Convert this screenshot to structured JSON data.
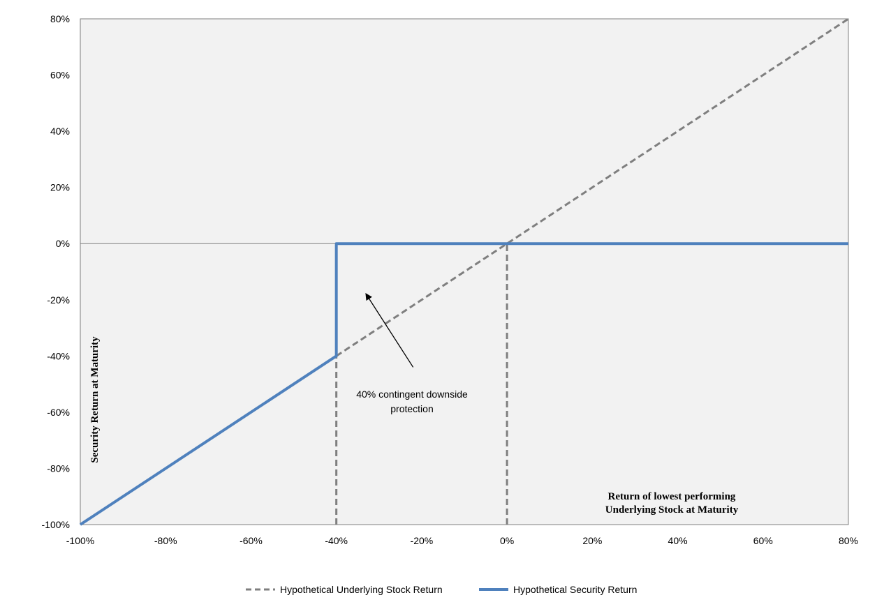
{
  "chart_data": {
    "type": "line",
    "x_ticks": [
      "-100%",
      "-80%",
      "-60%",
      "-40%",
      "-20%",
      "0%",
      "20%",
      "40%",
      "60%",
      "80%"
    ],
    "y_ticks": [
      "-100%",
      "-80%",
      "-60%",
      "-40%",
      "-20%",
      "0%",
      "20%",
      "40%",
      "60%",
      "80%"
    ],
    "xlim": [
      -100,
      80
    ],
    "ylim": [
      -100,
      80
    ],
    "xlabel": [
      "Return of lowest performing",
      "Underlying Stock at Maturity"
    ],
    "ylabel": "Security Return at Maturity",
    "grid": false,
    "legend_position": "bottom",
    "series": [
      {
        "name": "Hypothetical Underlying Stock Return",
        "style": "dashed",
        "color": "#7f7f7f",
        "points": [
          [
            -40,
            -40
          ],
          [
            80,
            80
          ]
        ]
      },
      {
        "name": "Hypothetical Security Return",
        "style": "solid",
        "color": "#4f81bd",
        "points": [
          [
            -100,
            -100
          ],
          [
            -40,
            -40
          ],
          [
            -40,
            0
          ],
          [
            80,
            0
          ]
        ]
      }
    ],
    "reference_lines": [
      {
        "x": -40,
        "y_from": -100,
        "y_to": -40,
        "style": "dashed",
        "color": "#7f7f7f"
      },
      {
        "x": 0,
        "y_from": -100,
        "y_to": 0,
        "style": "dashed",
        "color": "#7f7f7f"
      }
    ],
    "annotation": {
      "lines": [
        "40% contingent downside",
        "protection"
      ],
      "arrow_to": [
        -33,
        -18
      ],
      "arrow_from": [
        -22,
        -44
      ]
    }
  }
}
